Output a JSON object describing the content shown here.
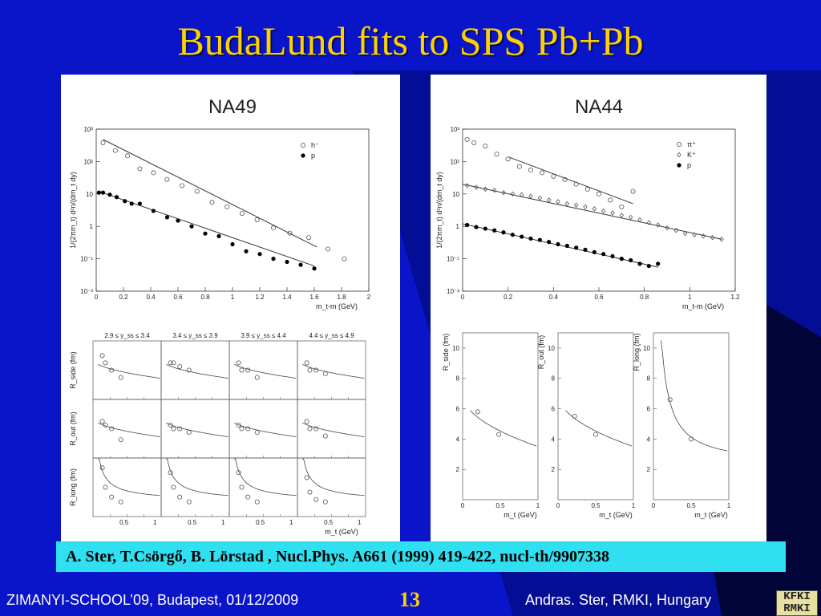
{
  "slide": {
    "title": "BudaLund fits to SPS Pb+Pb",
    "reference": "A. Ster, T.Csörgő, B. Lörstad , Nucl.Phys. A661 (1999) 419-422, nucl-th/9907338",
    "footer_left": "ZIMANYI-SCHOOL’09, Budapest, 01/12/2009",
    "page_number": "13",
    "footer_right": "Andras. Ster,  RMKI, Hungary",
    "logo_text": "KFKI RMKI",
    "colors": {
      "background": "#0a14c8",
      "title": "#ffd000",
      "reference_bar": "#30e0f0",
      "panel": "#ffffff"
    }
  },
  "chart_data": [
    {
      "id": "na49-spectra",
      "type": "scatter",
      "title": "NA49",
      "xlabel": "m_t-m (GeV)",
      "ylabel": "1/(2πm_t) d²n/(dm_t dy)",
      "xlim": [
        0,
        2
      ],
      "ylim": [
        0.01,
        1000
      ],
      "log_y": true,
      "xticks": [
        "0",
        "0.2",
        "0.4",
        "0.6",
        "0.8",
        "1",
        "1.2",
        "1.4",
        "1.6",
        "1.8",
        "2"
      ],
      "yticks": [
        "10^{-2}",
        "10^{-1}",
        "1",
        "10",
        "10^2",
        "10^3"
      ],
      "series": [
        {
          "name": "h⁻",
          "marker": "open-circle",
          "x": [
            0.05,
            0.14,
            0.23,
            0.32,
            0.42,
            0.52,
            0.63,
            0.74,
            0.85,
            0.96,
            1.07,
            1.18,
            1.3,
            1.42,
            1.56,
            1.7,
            1.82
          ],
          "y": [
            380,
            220,
            150,
            60,
            45,
            28,
            18,
            12,
            5.5,
            4,
            2.5,
            1.6,
            0.9,
            0.62,
            0.45,
            0.2,
            0.1
          ],
          "fit_x": [
            0.05,
            1.62
          ],
          "fit_y": [
            480,
            0.23
          ]
        },
        {
          "name": "p",
          "marker": "filled-circle",
          "x": [
            0.02,
            0.05,
            0.1,
            0.15,
            0.21,
            0.26,
            0.32,
            0.42,
            0.52,
            0.6,
            0.7,
            0.8,
            0.9,
            1,
            1.1,
            1.2,
            1.3,
            1.4,
            1.5,
            1.6
          ],
          "y": [
            11,
            11,
            9.5,
            8,
            6,
            5,
            5,
            3,
            1.9,
            1.5,
            1,
            0.6,
            0.5,
            0.28,
            0.17,
            0.14,
            0.1,
            0.08,
            0.065,
            0.05
          ],
          "fit_x": [
            0.02,
            1.6
          ],
          "fit_y": [
            12,
            0.06
          ]
        }
      ]
    },
    {
      "id": "na44-spectra",
      "type": "scatter",
      "title": "NA44",
      "xlabel": "m_t-m (GeV)",
      "ylabel": "1/(2πm_t) d²n/(dm_t dy)",
      "xlim": [
        0,
        1.2
      ],
      "ylim": [
        0.01,
        1000
      ],
      "log_y": true,
      "xticks": [
        "0",
        "0.2",
        "0.4",
        "0.6",
        "0.8",
        "1",
        "1.2"
      ],
      "yticks": [
        "10^{-2}",
        "10^{-1}",
        "1",
        "10",
        "10^2",
        "10^3"
      ],
      "series": [
        {
          "name": "π⁺",
          "marker": "open-circle",
          "x": [
            0.02,
            0.05,
            0.1,
            0.15,
            0.2,
            0.25,
            0.3,
            0.35,
            0.4,
            0.45,
            0.5,
            0.55,
            0.6,
            0.65,
            0.7,
            0.75
          ],
          "y": [
            480,
            380,
            300,
            170,
            120,
            70,
            55,
            45,
            35,
            28,
            20,
            14,
            10,
            6.5,
            4,
            12
          ],
          "fit_x": [
            0.2,
            0.75
          ],
          "fit_y": [
            140,
            5
          ]
        },
        {
          "name": "K⁺",
          "marker": "open-diamond",
          "x": [
            0.02,
            0.06,
            0.1,
            0.14,
            0.18,
            0.22,
            0.26,
            0.3,
            0.34,
            0.38,
            0.42,
            0.46,
            0.5,
            0.54,
            0.58,
            0.62,
            0.66,
            0.7,
            0.74,
            0.78,
            0.82,
            0.86,
            0.9,
            0.94,
            0.98,
            1.02,
            1.06,
            1.1,
            1.14
          ],
          "y": [
            18,
            16,
            14,
            13,
            11,
            10,
            9.5,
            8.5,
            7.5,
            6.5,
            5.8,
            5,
            4.5,
            4,
            3.5,
            3,
            2.6,
            2.2,
            1.9,
            1.6,
            1.3,
            1.1,
            0.9,
            0.75,
            0.6,
            0.55,
            0.5,
            0.45,
            0.4
          ],
          "fit_x": [
            0,
            1.14
          ],
          "fit_y": [
            20,
            0.4
          ]
        },
        {
          "name": "p",
          "marker": "filled-circle",
          "x": [
            0.02,
            0.06,
            0.1,
            0.14,
            0.18,
            0.22,
            0.26,
            0.3,
            0.34,
            0.38,
            0.42,
            0.46,
            0.5,
            0.54,
            0.58,
            0.62,
            0.66,
            0.7,
            0.74,
            0.78,
            0.82,
            0.86
          ],
          "y": [
            1.1,
            0.95,
            0.85,
            0.75,
            0.65,
            0.55,
            0.48,
            0.42,
            0.38,
            0.33,
            0.28,
            0.25,
            0.22,
            0.19,
            0.16,
            0.14,
            0.12,
            0.1,
            0.09,
            0.07,
            0.06,
            0.07
          ],
          "fit_x": [
            0,
            0.86
          ],
          "fit_y": [
            1.2,
            0.055
          ]
        }
      ]
    },
    {
      "id": "na49-radii",
      "type": "scatter",
      "xlabel": "m_t (GeV)",
      "xticks": [
        "0.5",
        "1"
      ],
      "column_labels": [
        "2.9 ≤ y_ss ≤ 3.4",
        "3.4 ≤ y_ss ≤ 3.9",
        "3.9 ≤ y_ss ≤ 4.4",
        "4.4 ≤ y_ss ≤ 4.9"
      ],
      "row_labels": [
        "R_side (fm)",
        "R_out (fm)",
        "R_long (fm)"
      ],
      "x": [
        0.15,
        0.2,
        0.3,
        0.45
      ],
      "rows": [
        {
          "name": "R_side",
          "cells": [
            [
              7,
              6,
              5,
              4
            ],
            [
              6,
              6,
              5.5,
              5
            ],
            [
              6,
              5,
              5,
              4
            ],
            [
              6,
              5,
              5,
              4.5
            ]
          ]
        },
        {
          "name": "R_out",
          "cells": [
            [
              6,
              5.5,
              5,
              3.5
            ],
            [
              5.5,
              5,
              5,
              4.5
            ],
            [
              5.5,
              5,
              5,
              4.5
            ],
            [
              6,
              5,
              5,
              4
            ]
          ]
        },
        {
          "name": "R_long",
          "cells": [
            [
              10,
              6,
              4,
              3
            ],
            [
              9,
              6,
              4,
              3
            ],
            [
              9,
              6,
              4,
              3
            ],
            [
              8,
              5,
              3.5,
              3
            ]
          ]
        }
      ]
    },
    {
      "id": "na44-radii",
      "type": "scatter",
      "xlabel": "m_t (GeV)",
      "xticks": [
        "0",
        "0.5",
        "1"
      ],
      "yticks": [
        "2",
        "4",
        "6",
        "8",
        "10"
      ],
      "ylim": [
        0,
        11
      ],
      "panels": [
        {
          "ylabel": "R_side (fm)",
          "x": [
            0.2,
            0.48
          ],
          "y": [
            5.8,
            4.3
          ]
        },
        {
          "ylabel": "R_out (fm)",
          "x": [
            0.22,
            0.5
          ],
          "y": [
            5.5,
            4.3
          ]
        },
        {
          "ylabel": "R_long (fm)",
          "x": [
            0.22,
            0.5
          ],
          "y": [
            6.6,
            4
          ]
        }
      ]
    }
  ]
}
